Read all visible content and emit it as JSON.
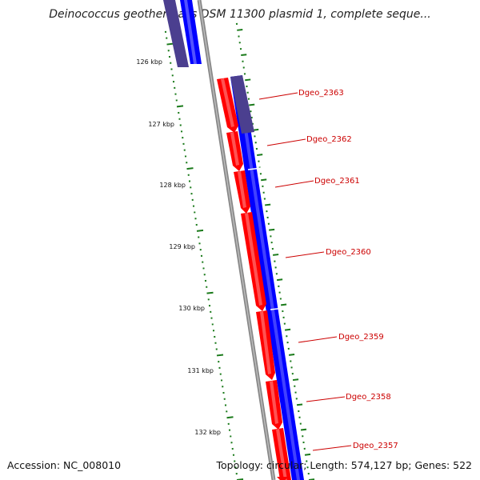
{
  "title": "Deinococcus geothermalis DSM 11300 plasmid 1, complete seque...",
  "footer": {
    "accession": "Accession: NC_008010",
    "topology": "Topology: circular; Length: 574,127 bp; Genes: 522"
  },
  "scale_labels": [
    "126 kbp",
    "127 kbp",
    "128 kbp",
    "129 kbp",
    "130 kbp",
    "131 kbp",
    "132 kbp"
  ],
  "genes": [
    {
      "label": "Dgeo_2363"
    },
    {
      "label": "Dgeo_2362"
    },
    {
      "label": "Dgeo_2361"
    },
    {
      "label": "Dgeo_2360"
    },
    {
      "label": "Dgeo_2359"
    },
    {
      "label": "Dgeo_2358"
    },
    {
      "label": "Dgeo_2357"
    }
  ],
  "colors": {
    "forward_strand": "#0000ff",
    "reverse_strand": "#ff0000",
    "overlap": "#4b3f8f",
    "backbone": "#888888",
    "ticks": "#1a7a1a",
    "label_text": "#cc0000"
  }
}
